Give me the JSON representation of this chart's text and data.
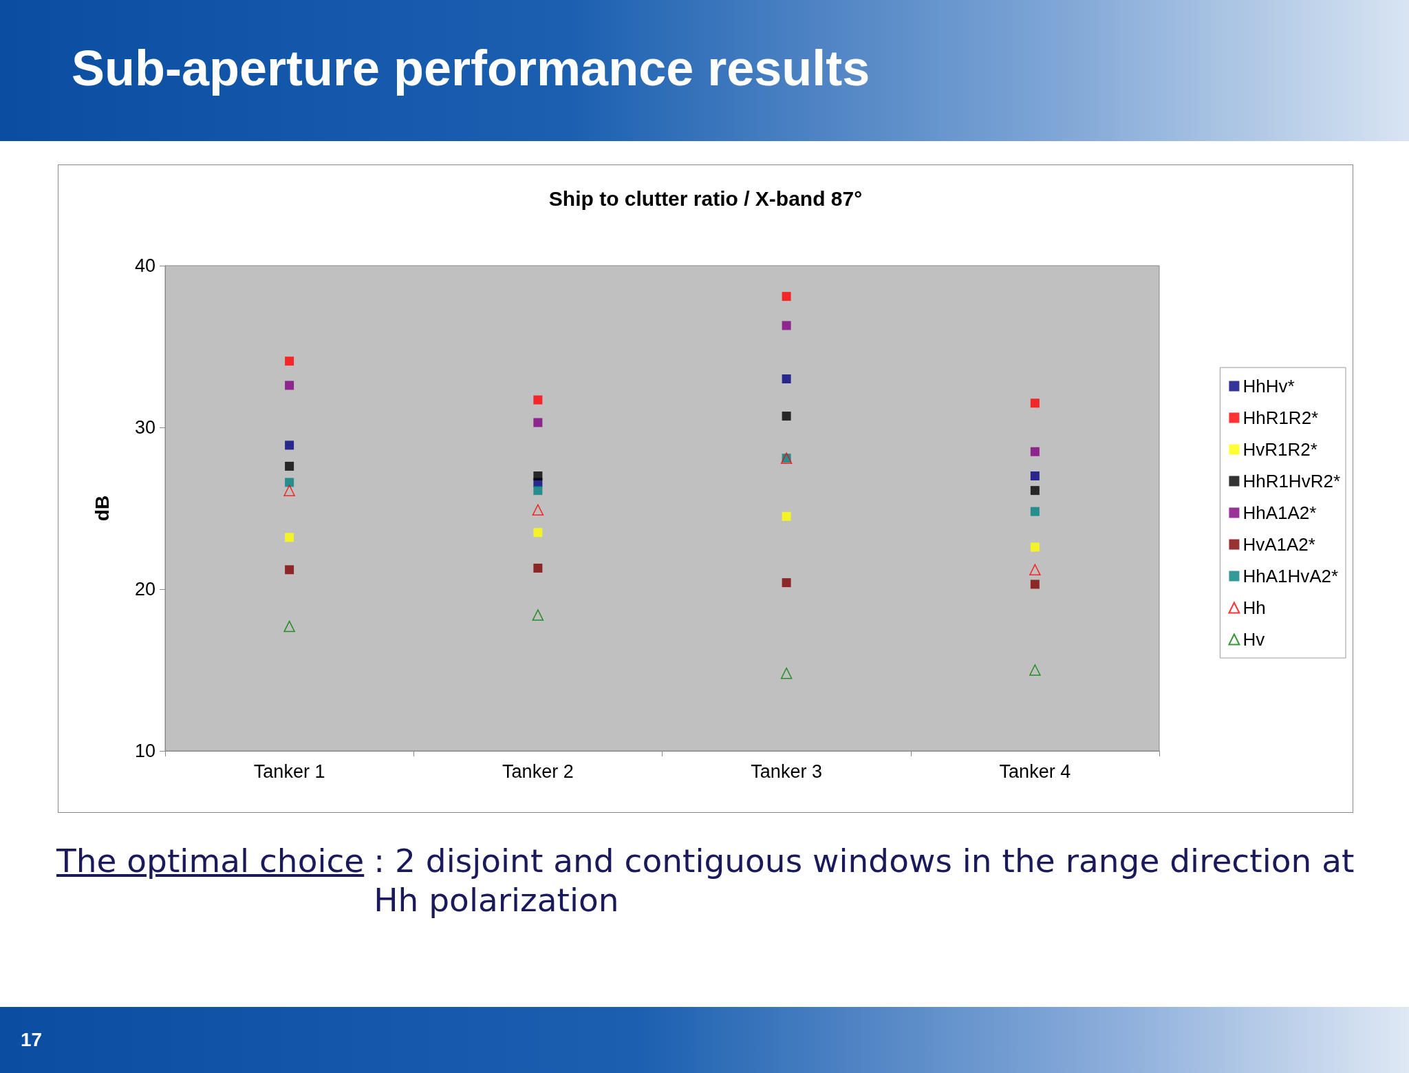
{
  "chart_data": {
    "type": "scatter",
    "title": "Ship to clutter ratio / X-band 87°",
    "ylabel": "dB",
    "annotations": [
      "Sub-aperture performance results",
      "The optimal choice",
      ": 2 disjoint and contiguous windows in the range direction at Hh polarization",
      "17"
    ],
    "categories": [
      "Tanker 1",
      "Tanker 2",
      "Tanker 3",
      "Tanker 4"
    ],
    "ylim": [
      10,
      40
    ],
    "yticks": [
      10,
      20,
      30,
      40
    ],
    "grid": false,
    "legend": "right",
    "series": [
      {
        "name": "HhHv*",
        "color": "#000080",
        "marker": "square",
        "values": [
          28.9,
          26.6,
          33.0,
          27.0
        ]
      },
      {
        "name": "HhR1R2*",
        "color": "#ff0000",
        "marker": "square",
        "values": [
          34.1,
          31.7,
          38.1,
          31.5
        ]
      },
      {
        "name": "HvR1R2*",
        "color": "#ffff00",
        "marker": "square",
        "values": [
          23.2,
          23.5,
          24.5,
          22.6
        ]
      },
      {
        "name": "HhR1HvR2*",
        "color": "#000000",
        "marker": "square",
        "values": [
          27.6,
          27.0,
          30.7,
          26.1
        ]
      },
      {
        "name": "HhA1A2*",
        "color": "#800080",
        "marker": "square",
        "values": [
          32.6,
          30.3,
          36.3,
          28.5
        ]
      },
      {
        "name": "HvA1A2*",
        "color": "#800000",
        "marker": "square",
        "values": [
          21.2,
          21.3,
          20.4,
          20.3
        ]
      },
      {
        "name": "HhA1HvA2*",
        "color": "#008080",
        "marker": "square",
        "values": [
          26.6,
          26.1,
          28.1,
          24.8
        ]
      },
      {
        "name": "Hh",
        "color": "#ff0000",
        "marker": "triangle",
        "values": [
          26.1,
          24.9,
          28.1,
          21.2
        ]
      },
      {
        "name": "Hv",
        "color": "#008000",
        "marker": "triangle",
        "values": [
          17.7,
          18.4,
          14.8,
          15.0
        ]
      }
    ]
  }
}
